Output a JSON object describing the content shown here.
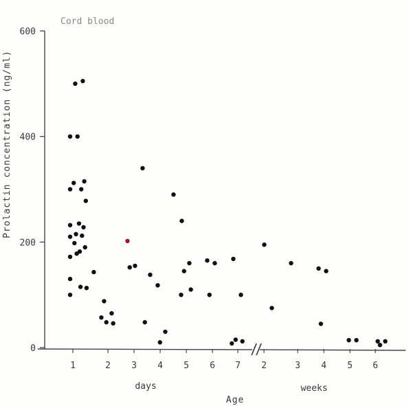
{
  "chart_data": {
    "type": "scatter",
    "title": "",
    "ylabel": "Prolactin concentration (ng/ml)",
    "xlabel": "Age",
    "ylim": [
      0,
      600
    ],
    "yticks": [
      0,
      200,
      400,
      600
    ],
    "y_tick_labels": [
      "0",
      "200",
      "400",
      "600"
    ],
    "annotation": "Cord blood",
    "x_tick_labels": [
      "1",
      "2",
      "3",
      "4",
      "5",
      "6",
      "7",
      "2",
      "3",
      "4",
      "5",
      "6"
    ],
    "x_unit_labels": [
      "days",
      "weeks"
    ],
    "axis_break": "after day 7",
    "grid": false,
    "colors": {
      "point": "#111111",
      "highlight_point": "#9a1a2a",
      "axis": "#444444",
      "annotation": "#8a8a8a"
    },
    "series": [
      {
        "points": [
          {
            "x": "cord",
            "y": 100
          },
          {
            "x": "cord",
            "y": 130
          },
          {
            "x": "cord",
            "y": 172
          },
          {
            "x": "cord",
            "y": 210
          },
          {
            "x": "cord",
            "y": 232
          },
          {
            "x": "cord",
            "y": 300
          },
          {
            "x": "cord",
            "y": 400
          },
          {
            "x": "day 1",
            "y": 500
          },
          {
            "x": "day 1",
            "y": 505
          },
          {
            "x": "day 1",
            "y": 400
          },
          {
            "x": "day 1",
            "y": 315
          },
          {
            "x": "day 1",
            "y": 312
          },
          {
            "x": "day 1",
            "y": 300
          },
          {
            "x": "day 1",
            "y": 278
          },
          {
            "x": "day 1",
            "y": 235
          },
          {
            "x": "day 1",
            "y": 228
          },
          {
            "x": "day 1",
            "y": 215
          },
          {
            "x": "day 1",
            "y": 212
          },
          {
            "x": "day 1",
            "y": 198
          },
          {
            "x": "day 1",
            "y": 190
          },
          {
            "x": "day 1",
            "y": 182
          },
          {
            "x": "day 1",
            "y": 178
          },
          {
            "x": "day 1",
            "y": 115
          },
          {
            "x": "day 1",
            "y": 113
          },
          {
            "x": "day 1.5",
            "y": 143
          },
          {
            "x": "day 1.5",
            "y": 57
          },
          {
            "x": "day 2",
            "y": 88
          },
          {
            "x": "day 2",
            "y": 65
          },
          {
            "x": "day 2",
            "y": 48
          },
          {
            "x": "day 2",
            "y": 46
          },
          {
            "x": "day 3",
            "y": 202
          },
          {
            "x": "day 3",
            "y": 155
          },
          {
            "x": "day 3",
            "y": 152
          },
          {
            "x": "day 3.5",
            "y": 340
          },
          {
            "x": "day 3.5",
            "y": 138
          },
          {
            "x": "day 3.5",
            "y": 48
          },
          {
            "x": "day 4",
            "y": 118
          },
          {
            "x": "day 4",
            "y": 30
          },
          {
            "x": "day 4",
            "y": 10
          },
          {
            "x": "day 4.5",
            "y": 290
          },
          {
            "x": "day 4.5",
            "y": 100
          },
          {
            "x": "day 5",
            "y": 240
          },
          {
            "x": "day 5",
            "y": 160
          },
          {
            "x": "day 5",
            "y": 145
          },
          {
            "x": "day 5",
            "y": 110
          },
          {
            "x": "day 6",
            "y": 165
          },
          {
            "x": "day 6",
            "y": 160
          },
          {
            "x": "day 6",
            "y": 100
          },
          {
            "x": "day 7",
            "y": 168
          },
          {
            "x": "day 7",
            "y": 100
          },
          {
            "x": "day 7",
            "y": 15
          },
          {
            "x": "day 7",
            "y": 12
          },
          {
            "x": "day 7",
            "y": 8
          },
          {
            "x": "week 2",
            "y": 195
          },
          {
            "x": "week 2",
            "y": 75
          },
          {
            "x": "week 3",
            "y": 160
          },
          {
            "x": "week 4",
            "y": 150
          },
          {
            "x": "week 4",
            "y": 145
          },
          {
            "x": "week 4",
            "y": 45
          },
          {
            "x": "week 5",
            "y": 14
          },
          {
            "x": "week 5",
            "y": 14
          },
          {
            "x": "week 6",
            "y": 12
          },
          {
            "x": "week 6",
            "y": 12
          },
          {
            "x": "week 6",
            "y": 5
          }
        ]
      }
    ]
  }
}
